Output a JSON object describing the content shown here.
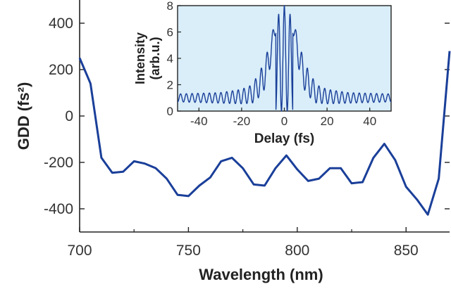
{
  "chart_data": [
    {
      "type": "line",
      "role": "main",
      "title": "",
      "xlabel": "Wavelength (nm)",
      "ylabel": "GDD (fs²)",
      "xlim": [
        700,
        870
      ],
      "ylim": [
        -500,
        500
      ],
      "x_ticks": [
        700,
        750,
        800,
        850
      ],
      "y_ticks": [
        -400,
        -200,
        0,
        200,
        400
      ],
      "grid": false,
      "line_color": "#1a3f99",
      "series": [
        {
          "x": [
            700,
            705,
            710,
            715,
            720,
            725,
            730,
            735,
            740,
            745,
            750,
            755,
            760,
            765,
            770,
            775,
            780,
            785,
            790,
            795,
            800,
            805,
            810,
            815,
            820,
            825,
            830,
            835,
            840,
            845,
            850,
            855,
            860,
            865,
            870
          ],
          "y": [
            250,
            140,
            -180,
            -245,
            -240,
            -195,
            -205,
            -225,
            -270,
            -340,
            -345,
            -300,
            -265,
            -195,
            -180,
            -225,
            -295,
            -300,
            -225,
            -170,
            -230,
            -280,
            -270,
            -225,
            -225,
            -290,
            -285,
            -180,
            -120,
            -190,
            -305,
            -360,
            -425,
            -270,
            280
          ]
        }
      ]
    },
    {
      "type": "line",
      "role": "inset",
      "title": "",
      "xlabel": "Delay (fs)",
      "ylabel": "Intensity (arb.u.)",
      "xlim": [
        -50,
        50
      ],
      "ylim": [
        0,
        8
      ],
      "x_ticks": [
        -40,
        -20,
        0,
        20,
        40
      ],
      "y_ticks": [
        0,
        2,
        4,
        6,
        8
      ],
      "grid": false,
      "background": "#d9eef9",
      "line_color": "#1a3f99",
      "fringe_period_fs": 2.7,
      "background_level": 1,
      "series": [
        {
          "x": [
            -50,
            -40,
            -30,
            -20,
            -15,
            -10,
            -7,
            -4,
            -2,
            0,
            2,
            4,
            7,
            10,
            15,
            20,
            30,
            40,
            50
          ],
          "y": [
            1.0,
            1.0,
            1.0,
            1.1,
            1.3,
            2.4,
            4.0,
            6.5,
            7.8,
            8.0,
            7.8,
            6.5,
            4.0,
            2.4,
            1.3,
            1.1,
            1.0,
            1.0,
            1.0
          ],
          "envelope_amplitude": [
            0.3,
            0.35,
            0.4,
            0.55,
            0.7,
            1.1,
            1.0,
            0.6,
            0.2,
            0.0,
            0.2,
            0.6,
            1.0,
            1.1,
            0.7,
            0.55,
            0.4,
            0.35,
            0.3
          ]
        }
      ]
    }
  ]
}
